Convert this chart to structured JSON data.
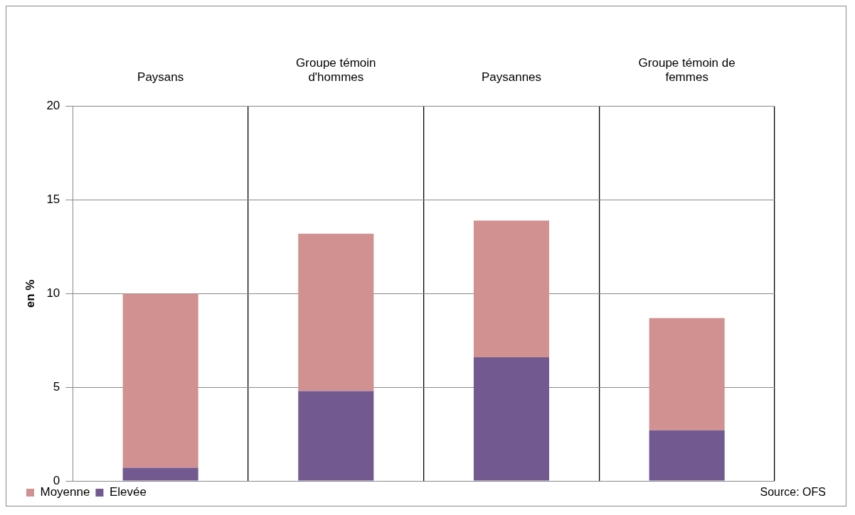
{
  "chart_data": {
    "type": "bar",
    "stacked": true,
    "ylabel": "en %",
    "categories": [
      "Paysans",
      "Groupe témoin d'hommes",
      "Paysannes",
      "Groupe témoin de femmes"
    ],
    "series": [
      {
        "name": "Elevée",
        "color": "#725990",
        "values": [
          0.7,
          4.8,
          6.6,
          2.7
        ]
      },
      {
        "name": "Moyenne",
        "color": "#d19191",
        "values": [
          9.3,
          8.4,
          7.3,
          6.0
        ]
      }
    ],
    "ylim": [
      0,
      20
    ],
    "yticks": [
      0,
      5,
      10,
      15,
      20
    ],
    "grid": true,
    "legend": "bottom left",
    "annotations": [
      "Source: OFS"
    ]
  }
}
